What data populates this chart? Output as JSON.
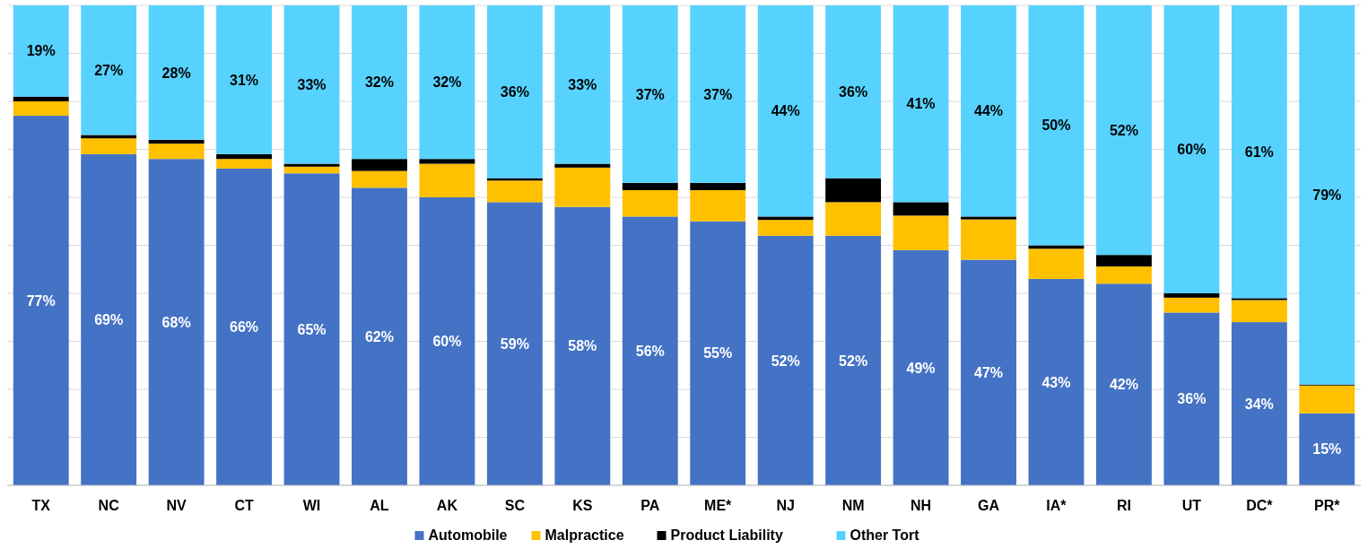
{
  "chart_data": {
    "type": "bar",
    "stacked": true,
    "categories": [
      "TX",
      "NC",
      "NV",
      "CT",
      "WI",
      "AL",
      "AK",
      "SC",
      "KS",
      "PA",
      "ME*",
      "NJ",
      "NM",
      "NH",
      "GA",
      "IA*",
      "RI",
      "UT",
      "DC*",
      "PR*"
    ],
    "series": [
      {
        "name": "Automobile",
        "color": "#4472c4",
        "values": [
          77,
          69,
          68,
          66,
          65,
          62,
          60,
          59,
          58,
          56,
          55,
          52,
          52,
          49,
          47,
          43,
          42,
          36,
          34,
          15
        ],
        "value_labels": [
          "77%",
          "69%",
          "68%",
          "66%",
          "65%",
          "62%",
          "60%",
          "59%",
          "58%",
          "56%",
          "55%",
          "52%",
          "52%",
          "49%",
          "47%",
          "43%",
          "42%",
          "36%",
          "34%",
          "15%"
        ]
      },
      {
        "name": "Malpractice",
        "color": "#ffc000",
        "values": [
          3,
          3.3,
          3.2,
          2,
          1.4,
          3.5,
          7,
          4.5,
          8.2,
          5.5,
          6.5,
          3.3,
          7,
          7.2,
          8.4,
          6.3,
          3.6,
          3.1,
          4.6,
          5.8
        ]
      },
      {
        "name": "Product Liability",
        "color": "#000000",
        "values": [
          1,
          0.7,
          0.8,
          1,
          0.6,
          2.5,
          1,
          0.5,
          0.8,
          1.5,
          1.5,
          0.7,
          5,
          2.8,
          0.6,
          0.7,
          2.4,
          0.9,
          0.4,
          0.2
        ]
      },
      {
        "name": "Other Tort",
        "color": "#57d2fe",
        "values": [
          19,
          27,
          28,
          31,
          33,
          32,
          32,
          36,
          33,
          37,
          37,
          44,
          36,
          41,
          44,
          50,
          52,
          60,
          61,
          79
        ],
        "value_labels": [
          "19%",
          "27%",
          "28%",
          "31%",
          "33%",
          "32%",
          "32%",
          "36%",
          "33%",
          "37%",
          "37%",
          "44%",
          "36%",
          "41%",
          "44%",
          "50%",
          "52%",
          "60%",
          "61%",
          "79%"
        ]
      }
    ],
    "ylim": [
      0,
      100
    ],
    "yticks": [
      {
        "value": 0,
        "label": null
      },
      {
        "value": 10,
        "label": null
      },
      {
        "value": 20,
        "label": null
      },
      {
        "value": 30,
        "label": null
      },
      {
        "value": 40,
        "label": null
      },
      {
        "value": 50,
        "label": null
      },
      {
        "value": 60,
        "label": null
      },
      {
        "value": 70,
        "label": null
      },
      {
        "value": 80,
        "label": null
      },
      {
        "value": 90,
        "label": null
      },
      {
        "value": 100,
        "label": null
      }
    ],
    "tick_labels": "x",
    "grid": "y",
    "legend": "bottom"
  }
}
